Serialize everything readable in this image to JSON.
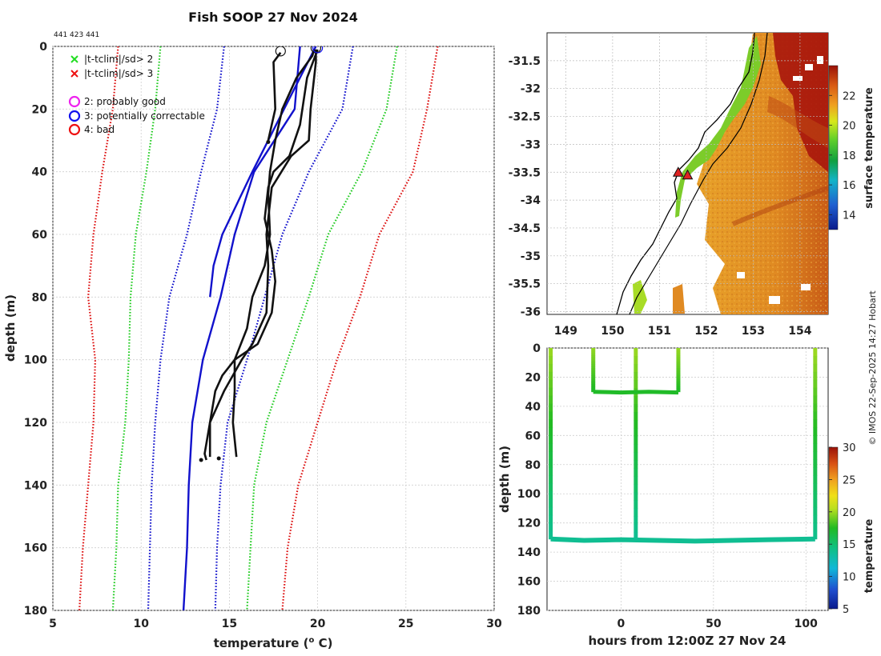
{
  "figure": {
    "title": "Fish SOOP 27 Nov 2024",
    "ids_text": "441 423 441",
    "credit": "© IMOS 22-Sep-2025 14:27 Hobart"
  },
  "chart_data": [
    {
      "id": "profile",
      "type": "line",
      "xlabel": "temperature (",
      "xlabel_sup": "o",
      "xlabel_end": " C)",
      "ylabel": "depth (m)",
      "xlim": [
        5,
        30
      ],
      "ylim": [
        0,
        180
      ],
      "y_inverted": true,
      "xticks": [
        5,
        10,
        15,
        20,
        25,
        30
      ],
      "yticks": [
        0,
        20,
        40,
        60,
        80,
        100,
        120,
        140,
        160,
        180
      ],
      "grid": true,
      "legend": {
        "position": "top-left",
        "entries": [
          {
            "label": "|t-tclim|/sd> 2",
            "marker": "x",
            "color": "#22dd22"
          },
          {
            "label": "|t-tclim|/sd> 3",
            "marker": "x",
            "color": "#ee1111"
          },
          {
            "label": "2: probably good",
            "marker": "circle",
            "color": "#ee22ee"
          },
          {
            "label": "3: potentially correctable",
            "marker": "circle",
            "color": "#1111ee"
          },
          {
            "label": "4: bad",
            "marker": "circle",
            "color": "#ee1111"
          }
        ]
      },
      "series": [
        {
          "name": "climatology -3sd",
          "style": "dotted",
          "color": "#dd1111",
          "depth": [
            0,
            20,
            40,
            60,
            80,
            100,
            120,
            140,
            160,
            180
          ],
          "temp": [
            8.7,
            8.4,
            7.8,
            7.3,
            7.0,
            7.4,
            7.3,
            7.0,
            6.7,
            6.5
          ]
        },
        {
          "name": "climatology +3sd",
          "style": "dotted",
          "color": "#dd1111",
          "depth": [
            0,
            20,
            40,
            60,
            80,
            100,
            120,
            140,
            160,
            180
          ],
          "temp": [
            26.8,
            26.2,
            25.4,
            23.5,
            22.4,
            21.1,
            20.0,
            18.9,
            18.3,
            18.0
          ]
        },
        {
          "name": "climatology -2sd",
          "style": "dotted",
          "color": "#22cc22",
          "depth": [
            0,
            20,
            40,
            60,
            80,
            100,
            120,
            140,
            160,
            180
          ],
          "temp": [
            11.1,
            10.8,
            10.3,
            9.7,
            9.4,
            9.3,
            9.1,
            8.7,
            8.6,
            8.4
          ]
        },
        {
          "name": "climatology +2sd",
          "style": "dotted",
          "color": "#22cc22",
          "depth": [
            0,
            20,
            40,
            60,
            80,
            100,
            120,
            140,
            160,
            180
          ],
          "temp": [
            24.5,
            23.9,
            22.5,
            20.6,
            19.5,
            18.3,
            17.1,
            16.4,
            16.2,
            16.0
          ]
        },
        {
          "name": "climatology -1sd",
          "style": "dotted",
          "color": "#1111cc",
          "depth": [
            0,
            20,
            40,
            60,
            80,
            100,
            120,
            140,
            160,
            180
          ],
          "temp": [
            14.7,
            14.3,
            13.4,
            12.6,
            11.6,
            11.1,
            10.8,
            10.6,
            10.5,
            10.4
          ]
        },
        {
          "name": "climatology +1sd",
          "style": "dotted",
          "color": "#1111cc",
          "depth": [
            0,
            20,
            40,
            60,
            80,
            100,
            120,
            140,
            160,
            180
          ],
          "temp": [
            22.0,
            21.4,
            19.5,
            18.0,
            17.0,
            16.0,
            14.9,
            14.5,
            14.3,
            14.2
          ]
        },
        {
          "name": "climatology mean",
          "style": "solid",
          "color": "#1111cc",
          "depth": [
            0,
            20,
            40,
            60,
            80,
            100,
            120,
            140,
            160,
            180
          ],
          "temp": [
            19.0,
            18.7,
            16.4,
            15.3,
            14.5,
            13.5,
            12.9,
            12.7,
            12.6,
            12.4
          ]
        },
        {
          "name": "profile A",
          "style": "solid",
          "color": "#1111cc",
          "depth": [
            0,
            20,
            40,
            60,
            70,
            80
          ],
          "temp": [
            19.9,
            18.1,
            16.3,
            14.6,
            14.1,
            13.9
          ]
        },
        {
          "name": "profile B",
          "style": "solid",
          "color": "#111111",
          "depth": [
            2,
            5,
            20,
            30
          ],
          "temp": [
            17.9,
            17.5,
            17.6,
            17.2
          ]
        },
        {
          "name": "profile C",
          "style": "solid",
          "color": "#111111",
          "depth": [
            1,
            3,
            10,
            20,
            30,
            40,
            47,
            60,
            70,
            80,
            90,
            100,
            105,
            110,
            120,
            130,
            132
          ],
          "temp": [
            19.8,
            19.7,
            18.8,
            18.0,
            17.6,
            17.3,
            17.2,
            17.3,
            17.0,
            16.3,
            16.0,
            15.3,
            14.6,
            14.2,
            13.9,
            13.6,
            13.7
          ]
        },
        {
          "name": "profile D",
          "style": "solid",
          "color": "#111111",
          "depth": [
            1,
            5,
            20,
            30,
            35,
            45,
            60,
            70,
            85,
            95,
            100,
            110,
            120,
            131
          ],
          "temp": [
            19.9,
            19.9,
            19.6,
            19.5,
            18.5,
            17.4,
            17.1,
            17.2,
            17.1,
            16.3,
            15.7,
            14.7,
            13.9,
            13.9
          ]
        },
        {
          "name": "profile E",
          "style": "solid",
          "color": "#111111",
          "depth": [
            1,
            10,
            25,
            35,
            40,
            45,
            55,
            65,
            75,
            85,
            95,
            100,
            110,
            120,
            131
          ],
          "temp": [
            20.0,
            19.4,
            19.0,
            18.4,
            17.5,
            17.2,
            17.0,
            17.4,
            17.6,
            17.4,
            16.6,
            15.3,
            15.3,
            15.2,
            15.4
          ]
        }
      ],
      "markers": [
        {
          "series": "profile B",
          "temp": 17.9,
          "depth": 1.5,
          "marker": "circle"
        },
        {
          "series": "profile D",
          "temp": 19.9,
          "depth": 0.5,
          "marker": "circle"
        },
        {
          "series": "profile D",
          "temp": 20.0,
          "depth": 0.5,
          "marker": "circle-blue"
        }
      ]
    },
    {
      "id": "sst_map",
      "type": "heatmap",
      "xlim": [
        148.6,
        154.6
      ],
      "ylim": [
        -36.05,
        -31.0
      ],
      "xticks": [
        149,
        150,
        151,
        152,
        153,
        154
      ],
      "yticks": [
        -31.5,
        -32,
        -32.5,
        -33,
        -33.5,
        -34,
        -34.5,
        -35,
        -35.5,
        -36
      ],
      "grid": true,
      "colorbar": {
        "label": "surface temperature",
        "range": [
          13,
          24
        ],
        "ticks": [
          14,
          16,
          18,
          20,
          22
        ]
      },
      "stations": [
        {
          "lon": 151.4,
          "lat": -33.5
        },
        {
          "lon": 151.6,
          "lat": -33.55
        }
      ]
    },
    {
      "id": "section",
      "type": "scatter",
      "xlabel": "hours from 12:00Z 27 Nov 24",
      "ylabel": "depth (m)",
      "xlim": [
        -40,
        112
      ],
      "ylim": [
        0,
        180
      ],
      "y_inverted": true,
      "xticks": [
        0,
        50,
        100
      ],
      "yticks": [
        0,
        20,
        40,
        60,
        80,
        100,
        120,
        140,
        160,
        180
      ],
      "grid": true,
      "colorbar": {
        "label": "temperature",
        "range": [
          5,
          30
        ],
        "ticks": [
          5,
          10,
          15,
          20,
          25,
          30
        ]
      },
      "casts": [
        {
          "hour": -38,
          "max_depth": 131,
          "t_surface": 19.9,
          "t_bottom": 13.8
        },
        {
          "hour": -15,
          "max_depth": 30,
          "t_surface": 19.7,
          "t_bottom": 17.2
        },
        {
          "hour": 8,
          "max_depth": 132,
          "t_surface": 19.9,
          "t_bottom": 13.7
        },
        {
          "hour": 31,
          "max_depth": 30,
          "t_surface": 19.8,
          "t_bottom": 17.3
        },
        {
          "hour": 105,
          "max_depth": 131,
          "t_surface": 20.0,
          "t_bottom": 14.0
        }
      ],
      "bottom_track": {
        "hours": [
          -38,
          -20,
          0,
          20,
          40,
          60,
          80,
          105
        ],
        "depth": [
          131,
          132,
          131.5,
          132,
          132.5,
          132,
          131.5,
          131
        ],
        "temp": 13.8
      },
      "mid_track": {
        "hours": [
          -15,
          0,
          15,
          31
        ],
        "depth": [
          30,
          30.5,
          30,
          30.5
        ],
        "temp": 17.3
      }
    }
  ]
}
